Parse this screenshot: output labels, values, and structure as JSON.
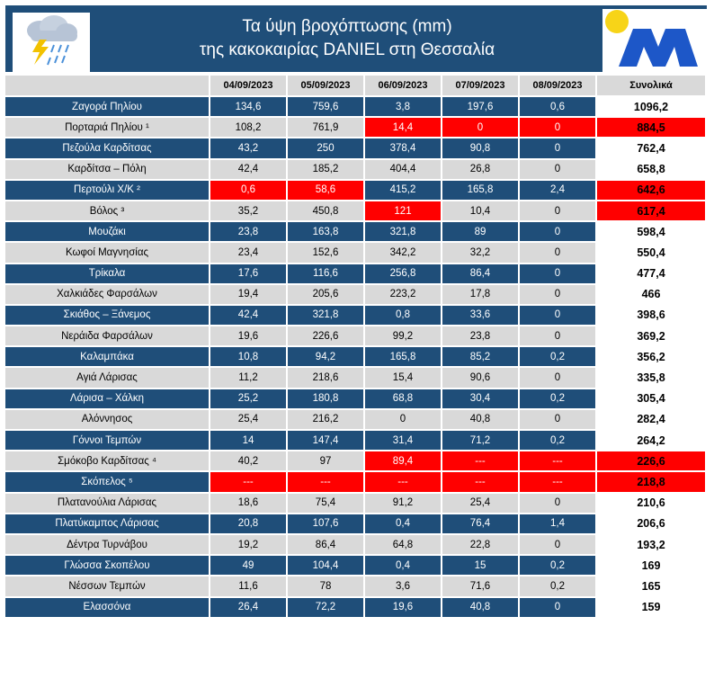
{
  "title": {
    "line1": "Τα ύψη βροχόπτωσης (mm)",
    "line2": "της κακοκαιρίας DANIEL στη Θεσσαλία"
  },
  "icons": {
    "weather": "storm-cloud-icon",
    "logo": "meteo-logo-icon"
  },
  "colors": {
    "header_blue": "#1f4e79",
    "row_gray": "#d9d9d9",
    "highlight_red": "#ff0000"
  },
  "table": {
    "columns": [
      "",
      "04/09/2023",
      "05/09/2023",
      "06/09/2023",
      "07/09/2023",
      "08/09/2023",
      "Συνολικά"
    ],
    "rows": [
      {
        "station": "Ζαγορά Πηλίου",
        "values": [
          "134,6",
          "759,6",
          "3,8",
          "197,6",
          "0,6"
        ],
        "total": "1096,2",
        "red": []
      },
      {
        "station": "Πορταριά Πηλίου ¹",
        "values": [
          "108,2",
          "761,9",
          "14,4",
          "0",
          "0"
        ],
        "total": "884,5",
        "red": [
          2,
          3,
          4,
          5
        ]
      },
      {
        "station": "Πεζούλα Καρδίτσας",
        "values": [
          "43,2",
          "250",
          "378,4",
          "90,8",
          "0"
        ],
        "total": "762,4",
        "red": []
      },
      {
        "station": "Καρδίτσα – Πόλη",
        "values": [
          "42,4",
          "185,2",
          "404,4",
          "26,8",
          "0"
        ],
        "total": "658,8",
        "red": []
      },
      {
        "station": "Περτούλι Χ/Κ ²",
        "values": [
          "0,6",
          "58,6",
          "415,2",
          "165,8",
          "2,4"
        ],
        "total": "642,6",
        "red": [
          0,
          1,
          5
        ]
      },
      {
        "station": "Βόλος ³",
        "values": [
          "35,2",
          "450,8",
          "121",
          "10,4",
          "0"
        ],
        "total": "617,4",
        "red": [
          2,
          5
        ]
      },
      {
        "station": "Μουζάκι",
        "values": [
          "23,8",
          "163,8",
          "321,8",
          "89",
          "0"
        ],
        "total": "598,4",
        "red": []
      },
      {
        "station": "Κωφοί Μαγνησίας",
        "values": [
          "23,4",
          "152,6",
          "342,2",
          "32,2",
          "0"
        ],
        "total": "550,4",
        "red": []
      },
      {
        "station": "Τρίκαλα",
        "values": [
          "17,6",
          "116,6",
          "256,8",
          "86,4",
          "0"
        ],
        "total": "477,4",
        "red": []
      },
      {
        "station": "Χαλκιάδες Φαρσάλων",
        "values": [
          "19,4",
          "205,6",
          "223,2",
          "17,8",
          "0"
        ],
        "total": "466",
        "red": []
      },
      {
        "station": "Σκιάθος – Ξάνεμος",
        "values": [
          "42,4",
          "321,8",
          "0,8",
          "33,6",
          "0"
        ],
        "total": "398,6",
        "red": []
      },
      {
        "station": "Νεράιδα Φαρσάλων",
        "values": [
          "19,6",
          "226,6",
          "99,2",
          "23,8",
          "0"
        ],
        "total": "369,2",
        "red": []
      },
      {
        "station": "Καλαμπάκα",
        "values": [
          "10,8",
          "94,2",
          "165,8",
          "85,2",
          "0,2"
        ],
        "total": "356,2",
        "red": []
      },
      {
        "station": "Αγιά Λάρισας",
        "values": [
          "11,2",
          "218,6",
          "15,4",
          "90,6",
          "0"
        ],
        "total": "335,8",
        "red": []
      },
      {
        "station": "Λάρισα – Χάλκη",
        "values": [
          "25,2",
          "180,8",
          "68,8",
          "30,4",
          "0,2"
        ],
        "total": "305,4",
        "red": []
      },
      {
        "station": "Αλόννησος",
        "values": [
          "25,4",
          "216,2",
          "0",
          "40,8",
          "0"
        ],
        "total": "282,4",
        "red": []
      },
      {
        "station": "Γόννοι Τεμπών",
        "values": [
          "14",
          "147,4",
          "31,4",
          "71,2",
          "0,2"
        ],
        "total": "264,2",
        "red": []
      },
      {
        "station": "Σμόκοβο Καρδίτσας ⁴",
        "values": [
          "40,2",
          "97",
          "89,4",
          "---",
          "---"
        ],
        "total": "226,6",
        "red": [
          2,
          3,
          4,
          5
        ]
      },
      {
        "station": "Σκόπελος ⁵",
        "values": [
          "---",
          "---",
          "---",
          "---",
          "---"
        ],
        "total": "218,8",
        "red": [
          0,
          1,
          2,
          3,
          4,
          5
        ]
      },
      {
        "station": "Πλατανούλια Λάρισας",
        "values": [
          "18,6",
          "75,4",
          "91,2",
          "25,4",
          "0"
        ],
        "total": "210,6",
        "red": []
      },
      {
        "station": "Πλατύκαμπος Λάρισας",
        "values": [
          "20,8",
          "107,6",
          "0,4",
          "76,4",
          "1,4"
        ],
        "total": "206,6",
        "red": []
      },
      {
        "station": "Δέντρα Τυρνάβου",
        "values": [
          "19,2",
          "86,4",
          "64,8",
          "22,8",
          "0"
        ],
        "total": "193,2",
        "red": []
      },
      {
        "station": "Γλώσσα Σκοπέλου",
        "values": [
          "49",
          "104,4",
          "0,4",
          "15",
          "0,2"
        ],
        "total": "169",
        "red": []
      },
      {
        "station": "Νέσσων Τεμπών",
        "values": [
          "11,6",
          "78",
          "3,6",
          "71,6",
          "0,2"
        ],
        "total": "165",
        "red": []
      },
      {
        "station": "Ελασσόνα",
        "values": [
          "26,4",
          "72,2",
          "19,6",
          "40,8",
          "0"
        ],
        "total": "159",
        "red": []
      }
    ]
  }
}
